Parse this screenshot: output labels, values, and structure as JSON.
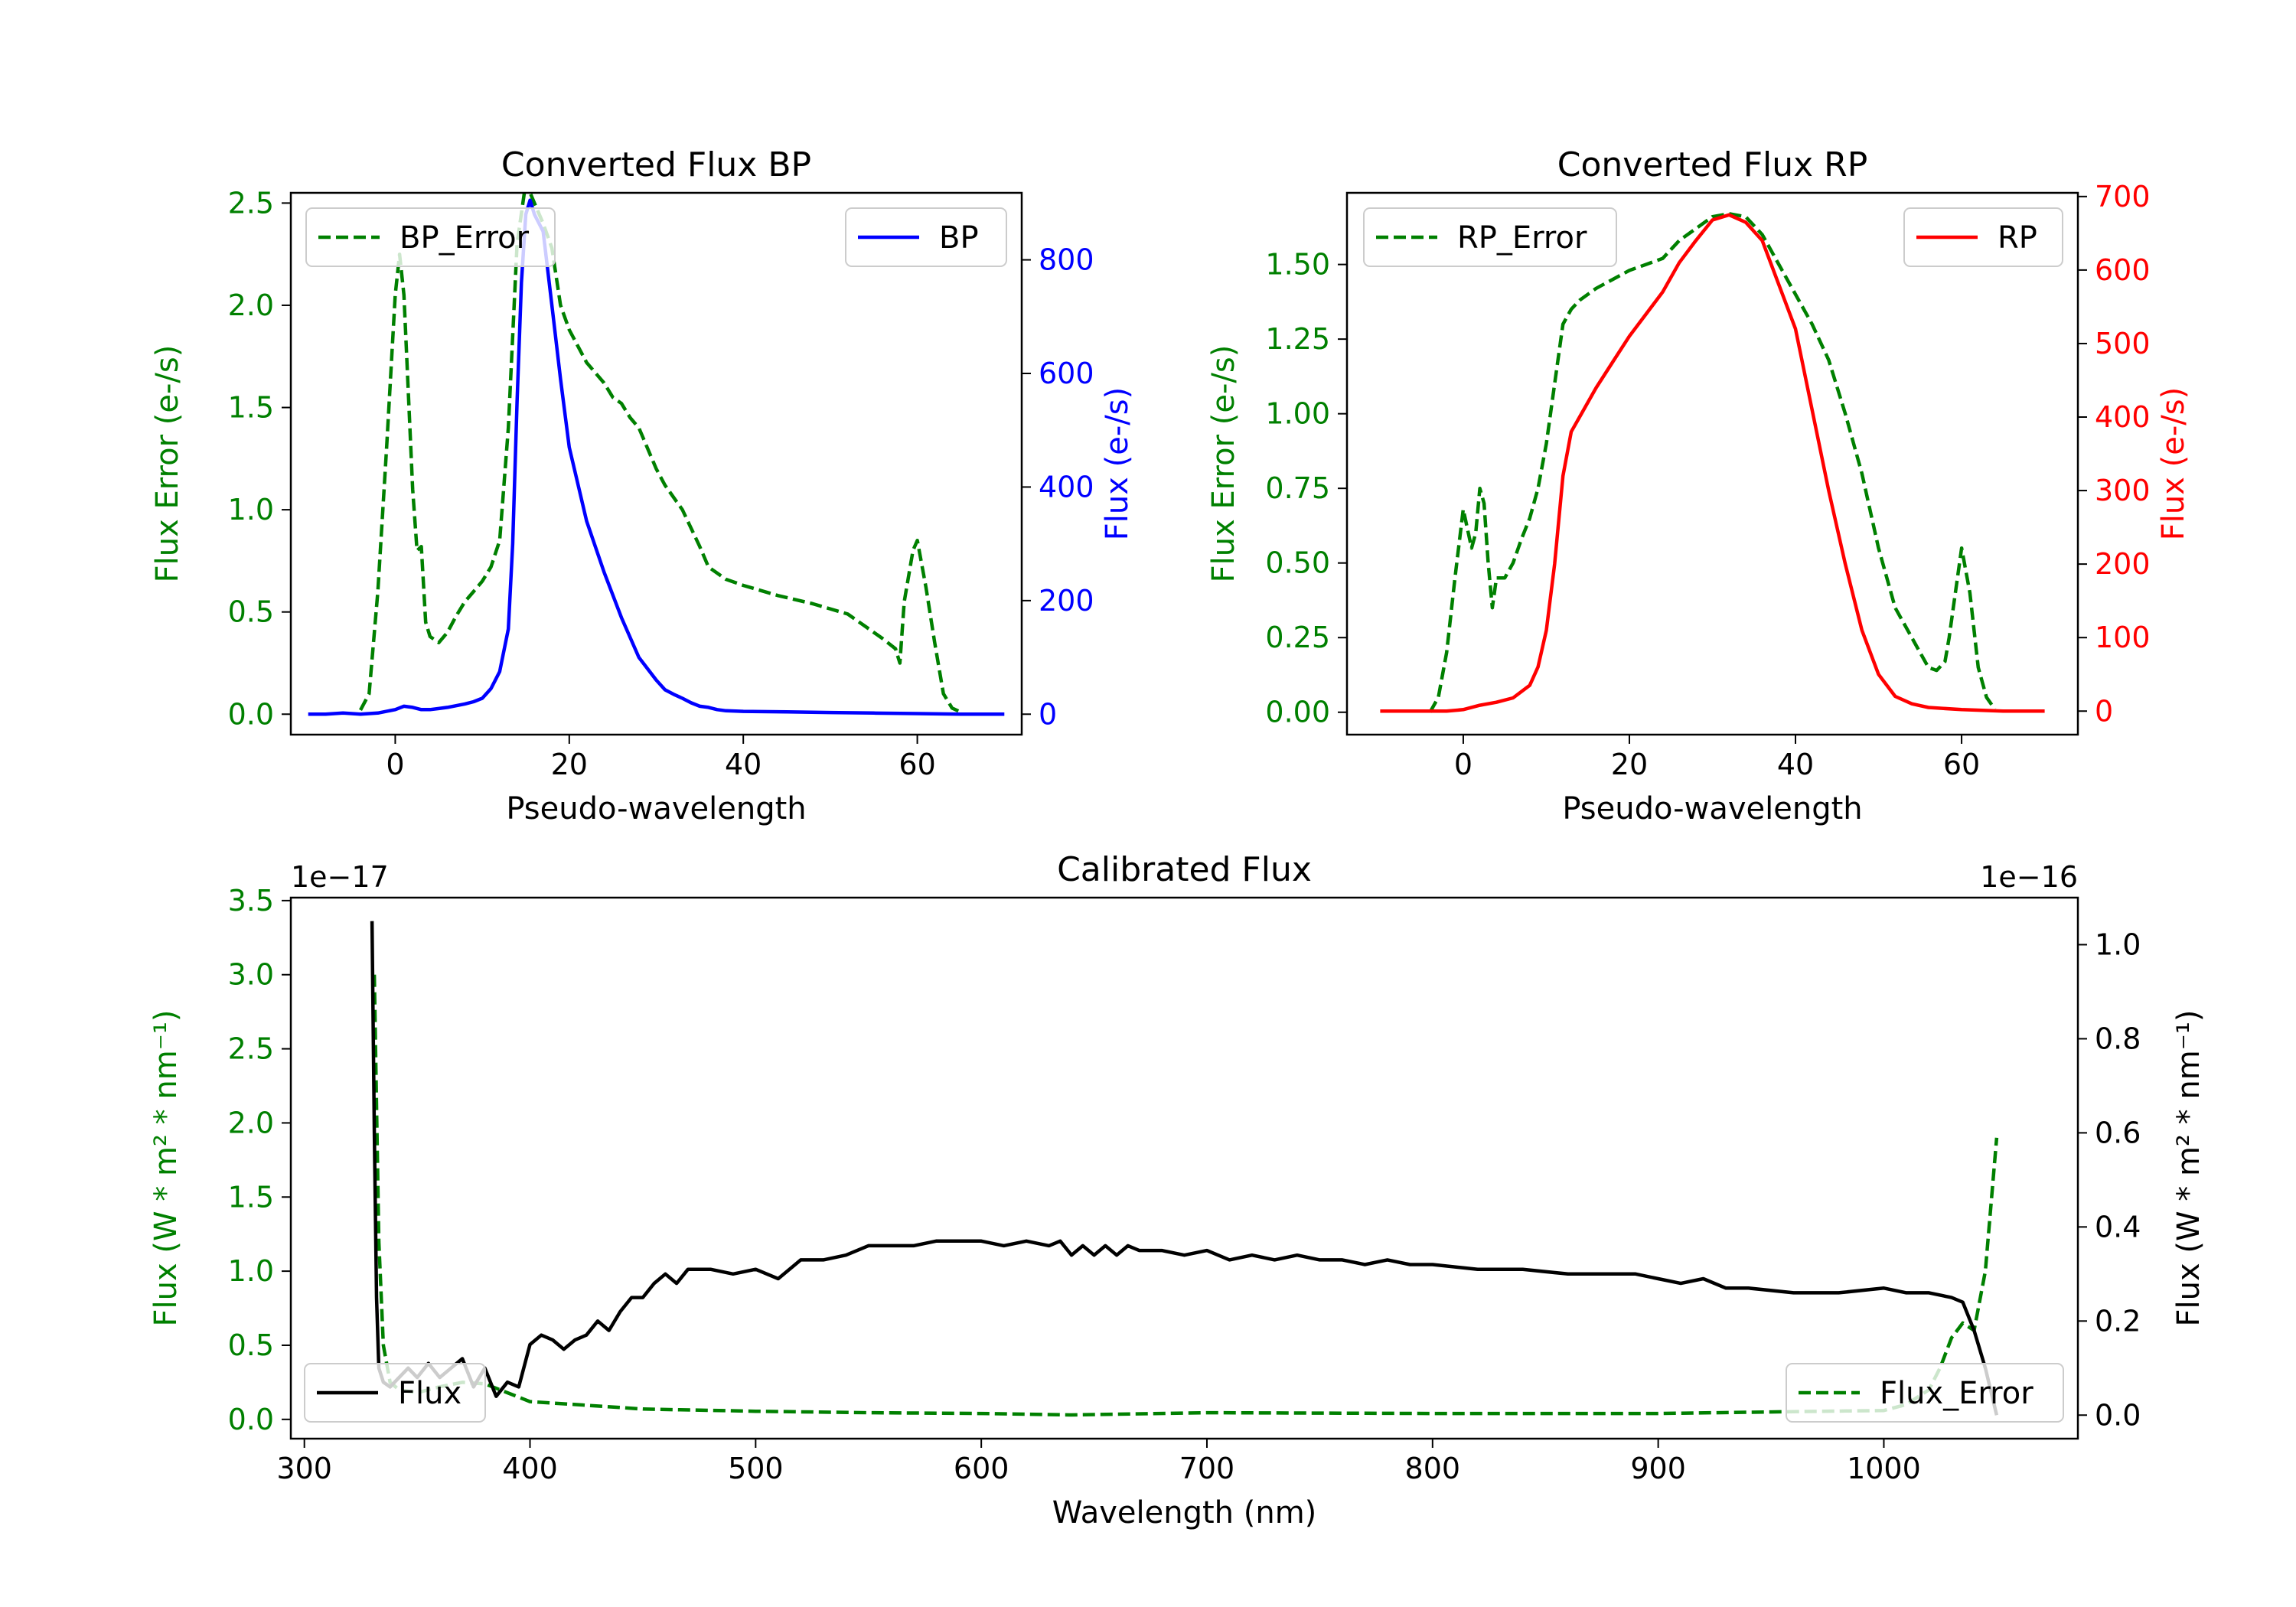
{
  "chart_data": [
    {
      "id": "bp",
      "type": "line",
      "title": "Converted Flux BP",
      "xlabel": "Pseudo-wavelength",
      "ylabel_left": "Flux Error (e-/s)",
      "ylabel_right": "Flux (e-/s)",
      "xlim": [
        -12,
        72
      ],
      "ylim_left": [
        -0.1,
        2.55
      ],
      "ylim_right": [
        -36,
        918
      ],
      "xticks": [
        0,
        20,
        40,
        60
      ],
      "xtick_labels": [
        "0",
        "20",
        "40",
        "60"
      ],
      "yticks_left": [
        0.0,
        0.5,
        1.0,
        1.5,
        2.0,
        2.5
      ],
      "ytick_labels_left": [
        "0.0",
        "0.5",
        "1.0",
        "1.5",
        "2.0",
        "2.5"
      ],
      "yticks_right": [
        0,
        200,
        400,
        600,
        800
      ],
      "ytick_labels_right": [
        "0",
        "200",
        "400",
        "600",
        "800"
      ],
      "left_color": "#008000",
      "right_color": "#0000ff",
      "legends": [
        {
          "position": "top-left",
          "entry": "BP_Error",
          "style": "dashed",
          "color": "#008000"
        },
        {
          "position": "top-right",
          "entry": "BP",
          "style": "solid",
          "color": "#0000ff"
        }
      ],
      "series": [
        {
          "name": "BP_Error",
          "axis": "left",
          "style": "dashed",
          "color": "#008000",
          "x": [
            -4,
            -3,
            -2,
            -1,
            0,
            0.5,
            1,
            2,
            2.5,
            3,
            3.5,
            4,
            5,
            6,
            7,
            8,
            9,
            10,
            11,
            12,
            13,
            14,
            15,
            16,
            17,
            18,
            19,
            20,
            22,
            24,
            25,
            26,
            27,
            28,
            30,
            31,
            33,
            35,
            36,
            38,
            40,
            44,
            48,
            52,
            54,
            56,
            57.5,
            58,
            58.5,
            59.5,
            60,
            61,
            62,
            63,
            64,
            65
          ],
          "y": [
            0.02,
            0.1,
            0.6,
            1.3,
            2.05,
            2.25,
            2.05,
            1.1,
            0.8,
            0.82,
            0.45,
            0.38,
            0.35,
            0.4,
            0.48,
            0.55,
            0.6,
            0.65,
            0.72,
            0.85,
            1.4,
            2.3,
            2.6,
            2.5,
            2.4,
            2.28,
            2.0,
            1.88,
            1.72,
            1.62,
            1.55,
            1.52,
            1.45,
            1.4,
            1.2,
            1.12,
            1.0,
            0.82,
            0.72,
            0.66,
            0.63,
            0.58,
            0.54,
            0.49,
            0.43,
            0.37,
            0.32,
            0.25,
            0.55,
            0.8,
            0.85,
            0.62,
            0.35,
            0.1,
            0.03,
            0.01
          ]
        },
        {
          "name": "BP",
          "axis": "right",
          "style": "solid",
          "color": "#0000ff",
          "x": [
            -10,
            -8,
            -6,
            -4,
            -2,
            0,
            1,
            2,
            3,
            4,
            5,
            6,
            8,
            9,
            10,
            11,
            12,
            13,
            13.5,
            14,
            14.5,
            15,
            15.5,
            16,
            17,
            18,
            19,
            20,
            22,
            24,
            26,
            28,
            30,
            31,
            32,
            33,
            34,
            35,
            36,
            37,
            38,
            40,
            45,
            50,
            55,
            60,
            65,
            70
          ],
          "y": [
            0,
            0,
            2,
            0,
            2,
            8,
            14,
            12,
            8,
            8,
            10,
            12,
            18,
            22,
            28,
            45,
            75,
            150,
            300,
            550,
            760,
            880,
            905,
            880,
            850,
            720,
            590,
            470,
            340,
            250,
            170,
            100,
            60,
            43,
            35,
            28,
            20,
            14,
            12,
            8,
            6,
            5,
            4,
            3,
            2,
            1,
            0,
            0
          ]
        }
      ]
    },
    {
      "id": "rp",
      "type": "line",
      "title": "Converted Flux RP",
      "xlabel": "Pseudo-wavelength",
      "ylabel_left": "Flux Error (e-/s)",
      "ylabel_right": "Flux (e-/s)",
      "xlim": [
        -14,
        74
      ],
      "ylim_left": [
        -0.075,
        1.74
      ],
      "ylim_right": [
        -32,
        705
      ],
      "xticks": [
        0,
        20,
        40,
        60
      ],
      "xtick_labels": [
        "0",
        "20",
        "40",
        "60"
      ],
      "yticks_left": [
        0.0,
        0.25,
        0.5,
        0.75,
        1.0,
        1.25,
        1.5
      ],
      "ytick_labels_left": [
        "0.00",
        "0.25",
        "0.50",
        "0.75",
        "1.00",
        "1.25",
        "1.50"
      ],
      "yticks_right": [
        0,
        100,
        200,
        300,
        400,
        500,
        600,
        700
      ],
      "ytick_labels_right": [
        "0",
        "100",
        "200",
        "300",
        "400",
        "500",
        "600",
        "700"
      ],
      "left_color": "#008000",
      "right_color": "#ff0000",
      "legends": [
        {
          "position": "top-left",
          "entry": "RP_Error",
          "style": "dashed",
          "color": "#008000"
        },
        {
          "position": "top-right",
          "entry": "RP",
          "style": "solid",
          "color": "#ff0000"
        }
      ],
      "series": [
        {
          "name": "RP_Error",
          "axis": "left",
          "style": "dashed",
          "color": "#008000",
          "x": [
            -4,
            -3,
            -2,
            -1,
            0,
            1,
            1.5,
            2,
            2.5,
            3,
            3.5,
            4,
            5,
            6,
            7,
            8,
            9,
            10,
            11,
            12,
            13,
            14,
            16,
            18,
            20,
            22,
            24,
            26,
            28,
            30,
            32,
            34,
            36,
            38,
            40,
            42,
            44,
            46,
            48,
            50,
            52,
            54,
            55,
            56,
            57,
            58,
            58.5,
            59,
            60,
            61,
            62,
            63,
            64
          ],
          "y": [
            0.0,
            0.05,
            0.2,
            0.45,
            0.68,
            0.55,
            0.6,
            0.75,
            0.7,
            0.5,
            0.35,
            0.45,
            0.45,
            0.5,
            0.58,
            0.65,
            0.75,
            0.9,
            1.1,
            1.3,
            1.35,
            1.38,
            1.42,
            1.45,
            1.48,
            1.5,
            1.52,
            1.58,
            1.62,
            1.66,
            1.67,
            1.66,
            1.6,
            1.5,
            1.4,
            1.3,
            1.18,
            1.0,
            0.8,
            0.55,
            0.35,
            0.25,
            0.2,
            0.15,
            0.14,
            0.17,
            0.25,
            0.35,
            0.55,
            0.4,
            0.15,
            0.05,
            0.01
          ]
        },
        {
          "name": "RP",
          "axis": "right",
          "style": "solid",
          "color": "#ff0000",
          "x": [
            -10,
            -6,
            -4,
            -2,
            0,
            2,
            4,
            6,
            8,
            9,
            10,
            11,
            12,
            13,
            14,
            16,
            18,
            20,
            22,
            24,
            26,
            28,
            30,
            32,
            34,
            36,
            38,
            40,
            42,
            44,
            46,
            48,
            50,
            52,
            54,
            56,
            60,
            65,
            70
          ],
          "y": [
            0,
            0,
            0,
            0,
            2,
            8,
            12,
            18,
            35,
            60,
            110,
            200,
            320,
            380,
            400,
            440,
            475,
            510,
            540,
            570,
            610,
            640,
            668,
            675,
            665,
            640,
            580,
            520,
            410,
            300,
            200,
            110,
            50,
            20,
            10,
            5,
            2,
            0,
            0
          ]
        }
      ]
    },
    {
      "id": "calibrated",
      "type": "line",
      "title": "Calibrated Flux",
      "xlabel": "Wavelength (nm)",
      "ylabel_left": "Flux (W * m² * nm⁻¹)",
      "ylabel_right": "Flux (W * m² * nm⁻¹)",
      "offset_left": "1e−17",
      "offset_right": "1e−16",
      "xlim": [
        294,
        1086
      ],
      "ylim_left": [
        -0.13,
        3.52
      ],
      "ylim_right": [
        -0.05,
        1.1
      ],
      "xticks": [
        300,
        400,
        500,
        600,
        700,
        800,
        900,
        1000
      ],
      "xtick_labels": [
        "300",
        "400",
        "500",
        "600",
        "700",
        "800",
        "900",
        "1000"
      ],
      "yticks_left": [
        0.0,
        0.5,
        1.0,
        1.5,
        2.0,
        2.5,
        3.0,
        3.5
      ],
      "ytick_labels_left": [
        "0.0",
        "0.5",
        "1.0",
        "1.5",
        "2.0",
        "2.5",
        "3.0",
        "3.5"
      ],
      "yticks_right": [
        0.0,
        0.2,
        0.4,
        0.6,
        0.8,
        1.0
      ],
      "ytick_labels_right": [
        "0.0",
        "0.2",
        "0.4",
        "0.6",
        "0.8",
        "1.0"
      ],
      "left_color": "#008000",
      "right_color": "#000000",
      "legends": [
        {
          "position": "bottom-left",
          "entry": "Flux",
          "style": "solid",
          "color": "#000000"
        },
        {
          "position": "bottom-right",
          "entry": "Flux_Error",
          "style": "dashed",
          "color": "#008000"
        }
      ],
      "series": [
        {
          "name": "Flux_Error",
          "axis": "left",
          "style": "dashed",
          "color": "#008000",
          "x": [
            331,
            333,
            335,
            338,
            342,
            350,
            360,
            370,
            380,
            390,
            400,
            420,
            450,
            500,
            550,
            600,
            640,
            700,
            800,
            900,
            950,
            1000,
            1010,
            1020,
            1025,
            1030,
            1035,
            1040,
            1045,
            1050
          ],
          "y": [
            3.0,
            1.2,
            0.5,
            0.25,
            0.2,
            0.18,
            0.22,
            0.25,
            0.24,
            0.18,
            0.12,
            0.1,
            0.07,
            0.055,
            0.045,
            0.04,
            0.03,
            0.045,
            0.04,
            0.04,
            0.05,
            0.06,
            0.1,
            0.2,
            0.35,
            0.55,
            0.65,
            0.6,
            1.0,
            1.9
          ]
        },
        {
          "name": "Flux",
          "axis": "right",
          "style": "solid",
          "color": "#000000",
          "x": [
            330,
            331,
            332,
            333,
            335,
            338,
            342,
            346,
            350,
            355,
            360,
            365,
            370,
            375,
            380,
            385,
            390,
            395,
            400,
            405,
            410,
            415,
            420,
            425,
            430,
            435,
            440,
            445,
            450,
            455,
            460,
            465,
            470,
            480,
            490,
            500,
            510,
            520,
            530,
            540,
            550,
            560,
            570,
            580,
            590,
            600,
            610,
            620,
            630,
            635,
            640,
            645,
            650,
            655,
            660,
            665,
            670,
            680,
            690,
            700,
            710,
            720,
            730,
            740,
            750,
            760,
            770,
            780,
            790,
            800,
            820,
            840,
            860,
            880,
            890,
            900,
            910,
            920,
            930,
            940,
            960,
            980,
            1000,
            1010,
            1020,
            1030,
            1035,
            1040,
            1045,
            1050
          ],
          "y": [
            1.05,
            0.6,
            0.25,
            0.1,
            0.07,
            0.06,
            0.08,
            0.1,
            0.08,
            0.11,
            0.08,
            0.1,
            0.12,
            0.06,
            0.1,
            0.04,
            0.07,
            0.06,
            0.15,
            0.17,
            0.16,
            0.14,
            0.16,
            0.17,
            0.2,
            0.18,
            0.22,
            0.25,
            0.25,
            0.28,
            0.3,
            0.28,
            0.31,
            0.31,
            0.3,
            0.31,
            0.29,
            0.33,
            0.33,
            0.34,
            0.36,
            0.36,
            0.36,
            0.37,
            0.37,
            0.37,
            0.36,
            0.37,
            0.36,
            0.37,
            0.34,
            0.36,
            0.34,
            0.36,
            0.34,
            0.36,
            0.35,
            0.35,
            0.34,
            0.35,
            0.33,
            0.34,
            0.33,
            0.34,
            0.33,
            0.33,
            0.32,
            0.33,
            0.32,
            0.32,
            0.31,
            0.31,
            0.3,
            0.3,
            0.3,
            0.29,
            0.28,
            0.29,
            0.27,
            0.27,
            0.26,
            0.26,
            0.27,
            0.26,
            0.26,
            0.25,
            0.24,
            0.18,
            0.1,
            0.0
          ]
        }
      ]
    }
  ]
}
